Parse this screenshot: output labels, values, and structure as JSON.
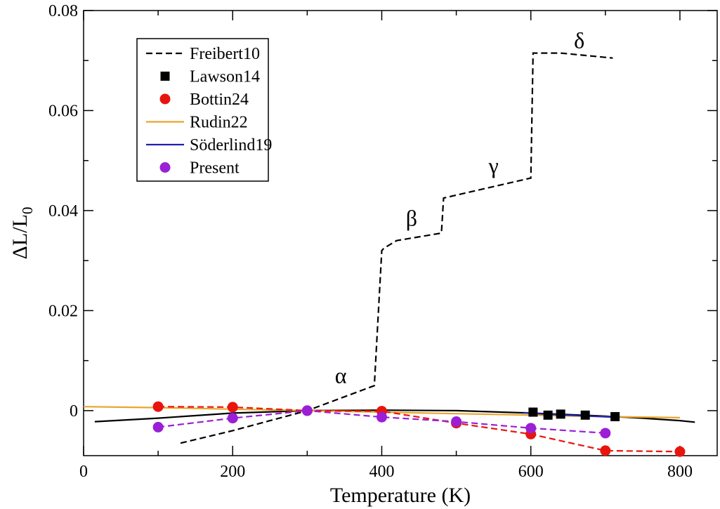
{
  "chart_data": {
    "type": "line",
    "xlabel": "Temperature (K)",
    "ylabel_main": "ΔL/L",
    "ylabel_sub": "0",
    "xlim": [
      0,
      850
    ],
    "ylim": [
      -0.009,
      0.08
    ],
    "x_ticks": [
      0,
      200,
      400,
      600,
      800
    ],
    "y_ticks": [
      0,
      0.02,
      0.04,
      0.06,
      0.08
    ],
    "x_tick_labels": [
      "0",
      "200",
      "400",
      "600",
      "800"
    ],
    "y_tick_labels": [
      "0",
      "0.02",
      "0.04",
      "0.06",
      "0.08"
    ],
    "legend_position": "top-left",
    "series": [
      {
        "name": "Freibert10",
        "style": "dashed-line",
        "color": "#000000",
        "x": [
          130,
          200,
          300,
          390,
          400,
          403,
          420,
          480,
          483,
          600,
          603,
          640,
          710
        ],
        "y": [
          -0.0065,
          -0.004,
          0.0,
          0.005,
          0.032,
          0.0325,
          0.034,
          0.0355,
          0.0425,
          0.0465,
          0.0715,
          0.0715,
          0.0705
        ]
      },
      {
        "name": "Lawson14",
        "style": "square-markers",
        "color": "#000000",
        "x": [
          603,
          623,
          640,
          673,
          713
        ],
        "y": [
          -0.0003,
          -0.0009,
          -0.0007,
          -0.0009,
          -0.0012
        ]
      },
      {
        "name": "Bottin24",
        "style": "circle-markers-dashed",
        "color": "#e8150e",
        "x": [
          100,
          200,
          300,
          400,
          500,
          600,
          700,
          800
        ],
        "y": [
          0.0008,
          0.0007,
          0.0,
          -0.0001,
          -0.0025,
          -0.0047,
          -0.008,
          -0.0082
        ]
      },
      {
        "name": "Rudin22",
        "style": "solid-line",
        "color": "#e8a52a",
        "x": [
          0,
          100,
          200,
          300,
          400,
          500,
          600,
          700,
          800
        ],
        "y": [
          0.0008,
          0.0006,
          0.0003,
          0.0,
          -0.0003,
          -0.0006,
          -0.0009,
          -0.0012,
          -0.0014
        ]
      },
      {
        "name": "Söderlind19",
        "style": "solid-line",
        "color": "#1f1fb0",
        "x": [
          590,
          620,
          650,
          680,
          710
        ],
        "y": [
          -0.0004,
          -0.0007,
          -0.0009,
          -0.0011,
          -0.0013
        ]
      },
      {
        "name": "Present",
        "style": "circle-markers-dashed",
        "color": "#9b1fd6",
        "x": [
          100,
          200,
          300,
          400,
          500,
          600,
          700
        ],
        "y": [
          -0.0033,
          -0.0015,
          0.0,
          -0.0013,
          -0.0022,
          -0.0035,
          -0.0045
        ]
      },
      {
        "name": "",
        "style": "solid-line",
        "color": "#000000",
        "x": [
          15,
          100,
          200,
          300,
          400,
          500,
          600,
          700,
          750,
          800,
          820
        ],
        "y": [
          -0.0022,
          -0.0015,
          -0.0005,
          0.0,
          0.0001,
          0.0,
          -0.0005,
          -0.0011,
          -0.0015,
          -0.002,
          -0.0023
        ]
      }
    ],
    "annotations": [
      {
        "text": "α",
        "x": 345,
        "y": 0.0055
      },
      {
        "text": "β",
        "x": 440,
        "y": 0.037
      },
      {
        "text": "γ",
        "x": 550,
        "y": 0.0475
      },
      {
        "text": "δ",
        "x": 665,
        "y": 0.0725
      }
    ]
  }
}
